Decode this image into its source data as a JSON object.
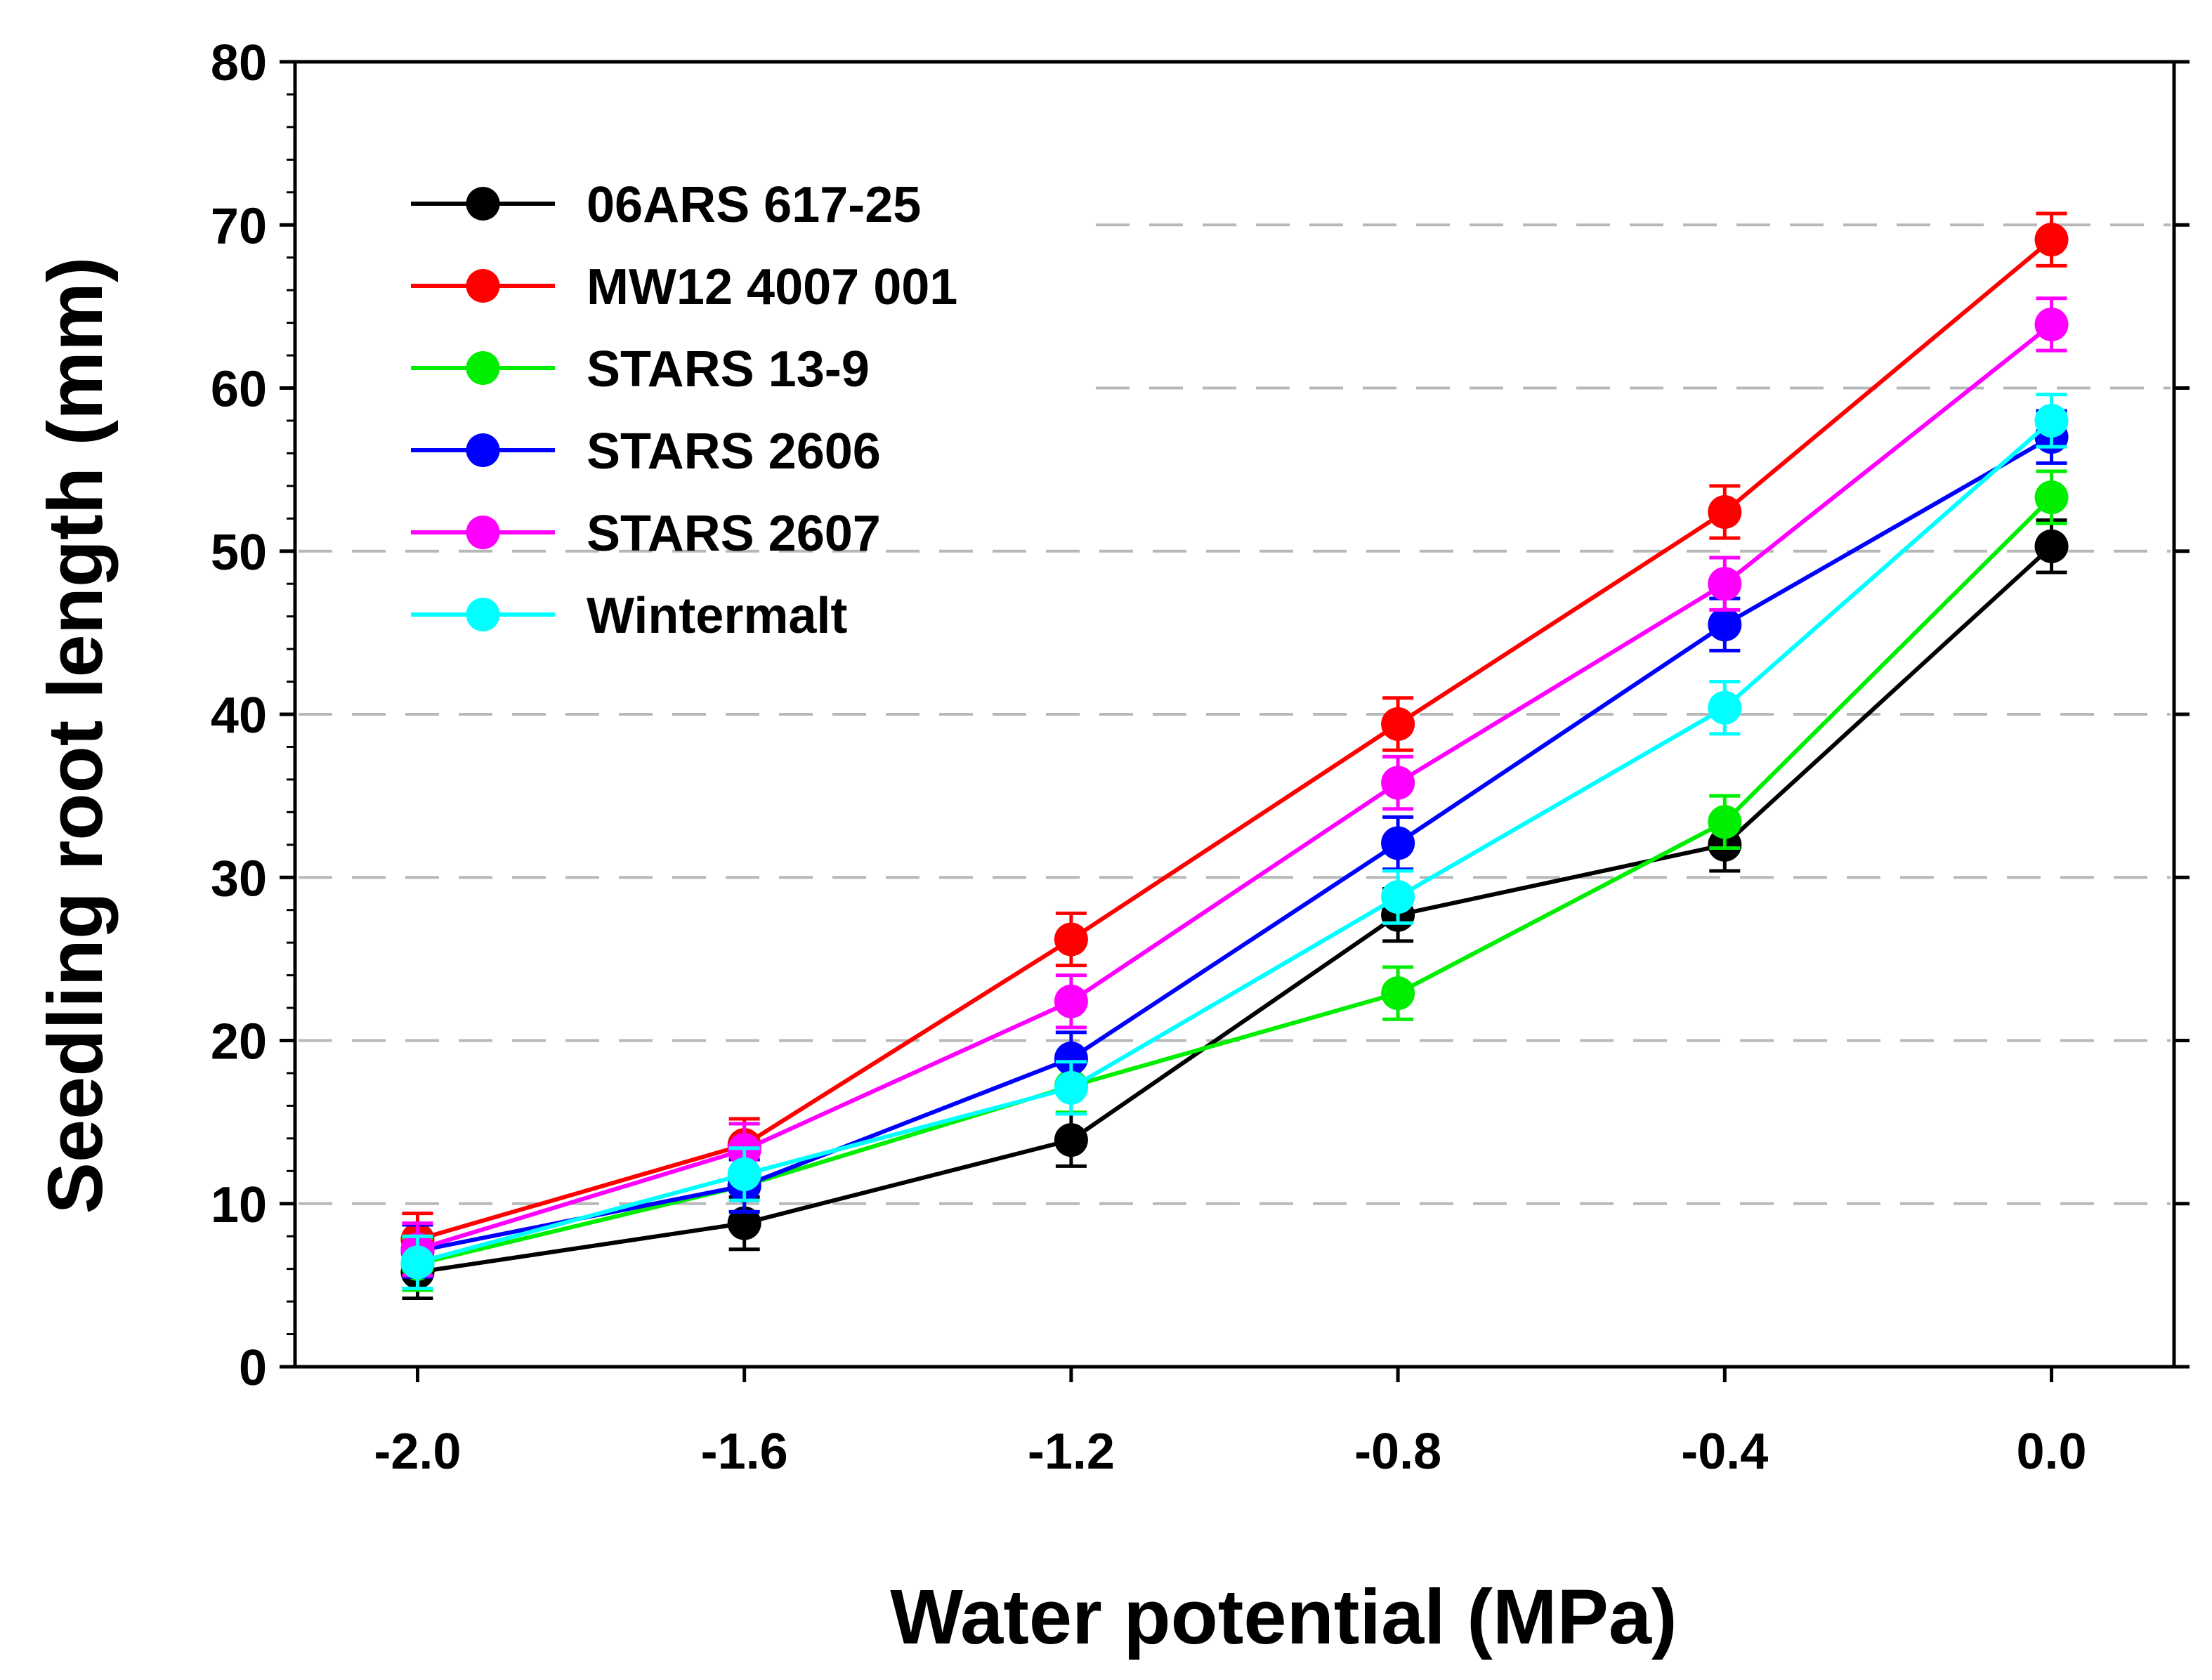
{
  "chart_data": {
    "type": "line",
    "title": "",
    "xlabel": "Water potential (MPa)",
    "ylabel": "Seedling root length (mm)",
    "xlim": [
      -2.15,
      0.15
    ],
    "ylim": [
      0,
      80
    ],
    "x": [
      -2.0,
      -1.6,
      -1.2,
      -0.8,
      -0.4,
      0.0
    ],
    "xtick_values": [
      -2.0,
      -1.6,
      -1.2,
      -0.8,
      -0.4,
      0.0
    ],
    "xtick_labels": [
      "-2.0",
      "-1.6",
      "-1.2",
      "-0.8",
      "-0.4",
      "0.0"
    ],
    "yticks": [
      0,
      10,
      20,
      30,
      40,
      50,
      60,
      70,
      80
    ],
    "grid": "horizontal dashed",
    "legend_position": "top-left",
    "series": [
      {
        "name": "06ARS 617-25",
        "color": "#000000",
        "values": [
          5.8,
          8.8,
          13.9,
          27.7,
          32.0,
          50.3
        ],
        "errors": [
          1.6,
          1.6,
          1.6,
          1.6,
          1.6,
          1.6
        ]
      },
      {
        "name": "MW12 4007 001",
        "color": "#ff0000",
        "values": [
          7.8,
          13.6,
          26.2,
          39.4,
          52.4,
          69.1
        ],
        "errors": [
          1.6,
          1.6,
          1.6,
          1.6,
          1.6,
          1.6
        ]
      },
      {
        "name": "STARS 13-9",
        "color": "#00ee00",
        "values": [
          6.3,
          11.1,
          17.2,
          22.9,
          33.4,
          53.3
        ],
        "errors": [
          1.6,
          1.6,
          1.6,
          1.6,
          1.6,
          1.6
        ]
      },
      {
        "name": "STARS 2606",
        "color": "#0000ff",
        "values": [
          7.1,
          11.1,
          18.9,
          32.1,
          45.5,
          57.0
        ],
        "errors": [
          1.6,
          1.6,
          1.6,
          1.6,
          1.6,
          1.6
        ]
      },
      {
        "name": "STARS 2607",
        "color": "#ff00ff",
        "values": [
          7.2,
          13.3,
          22.4,
          35.8,
          48.0,
          63.9
        ],
        "errors": [
          1.6,
          1.6,
          1.6,
          1.6,
          1.6,
          1.6
        ]
      },
      {
        "name": "Wintermalt",
        "color": "#00ffff",
        "values": [
          6.4,
          11.8,
          17.1,
          28.8,
          40.4,
          58.0
        ],
        "errors": [
          1.6,
          1.6,
          1.6,
          1.6,
          1.6,
          1.6
        ]
      }
    ]
  }
}
